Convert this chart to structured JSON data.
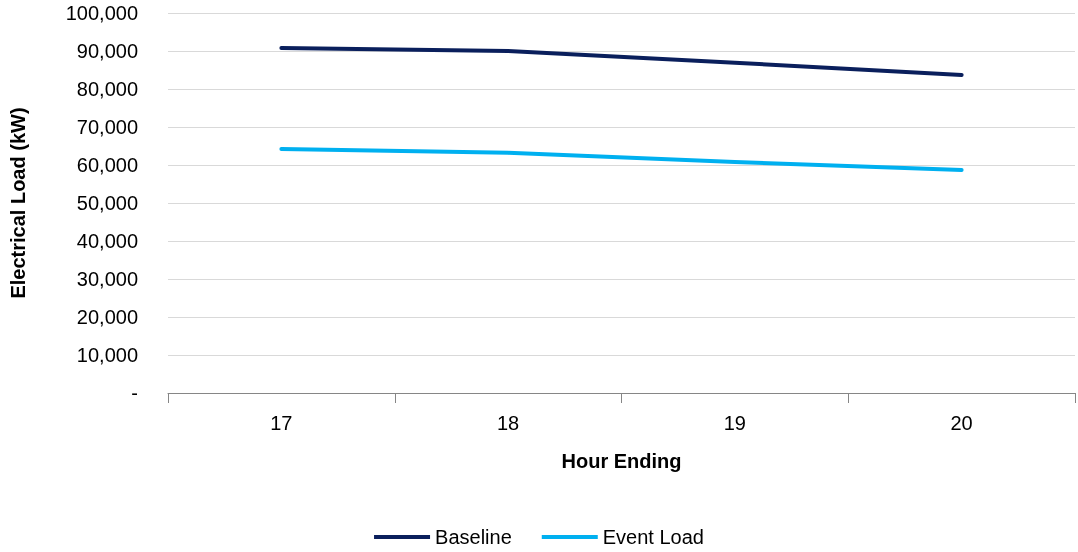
{
  "chart_data": {
    "type": "line",
    "xlabel": "Hour Ending",
    "ylabel": "Electrical Load (kW)",
    "categories": [
      "17",
      "18",
      "19",
      "20"
    ],
    "series": [
      {
        "name": "Baseline",
        "color": "#0a1f5c",
        "values": [
          90800,
          90000,
          86900,
          83700
        ]
      },
      {
        "name": "Event Load",
        "color": "#00b0f0",
        "values": [
          64200,
          63200,
          60800,
          58700
        ]
      }
    ],
    "ylim": [
      0,
      100000
    ],
    "yticks": [
      {
        "value": 0,
        "label": "-"
      },
      {
        "value": 10000,
        "label": "10,000"
      },
      {
        "value": 20000,
        "label": "20,000"
      },
      {
        "value": 30000,
        "label": "30,000"
      },
      {
        "value": 40000,
        "label": "40,000"
      },
      {
        "value": 50000,
        "label": "50,000"
      },
      {
        "value": 60000,
        "label": "60,000"
      },
      {
        "value": 70000,
        "label": "70,000"
      },
      {
        "value": 80000,
        "label": "80,000"
      },
      {
        "value": 90000,
        "label": "90,000"
      },
      {
        "value": 100000,
        "label": "100,000"
      }
    ],
    "grid": "y",
    "legend": "bottom",
    "marker": "none",
    "line_style": "solid"
  }
}
